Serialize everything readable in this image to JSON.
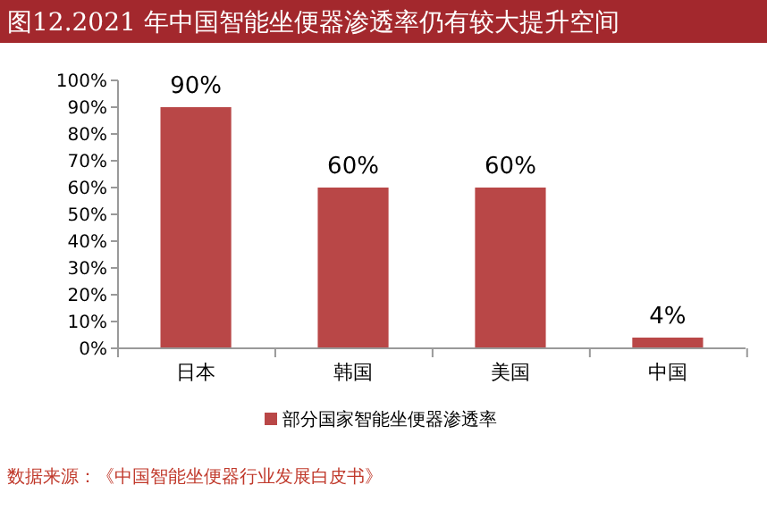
{
  "chart_data": {
    "type": "bar",
    "title": "图12.2021 年中国智能坐便器渗透率仍有较大提升空间",
    "categories": [
      "日本",
      "韩国",
      "美国",
      "中国"
    ],
    "series": [
      {
        "name": "部分国家智能坐便器渗透率",
        "color": "#b94747",
        "values": [
          90,
          60,
          60,
          4
        ]
      }
    ],
    "value_labels": [
      "90%",
      "60%",
      "60%",
      "4%"
    ],
    "ylim": [
      0,
      100
    ],
    "yticks": [
      {
        "value": 0,
        "label": "0%"
      },
      {
        "value": 10,
        "label": "10%"
      },
      {
        "value": 20,
        "label": "20%"
      },
      {
        "value": 30,
        "label": "30%"
      },
      {
        "value": 40,
        "label": "40%"
      },
      {
        "value": 50,
        "label": "50%"
      },
      {
        "value": 60,
        "label": "60%"
      },
      {
        "value": 70,
        "label": "70%"
      },
      {
        "value": 80,
        "label": "80%"
      },
      {
        "value": 90,
        "label": "90%"
      },
      {
        "value": 100,
        "label": "100%"
      }
    ],
    "legend": "bottom",
    "annotations": [
      "数据来源：《中国智能坐便器行业发展白皮书》"
    ]
  }
}
